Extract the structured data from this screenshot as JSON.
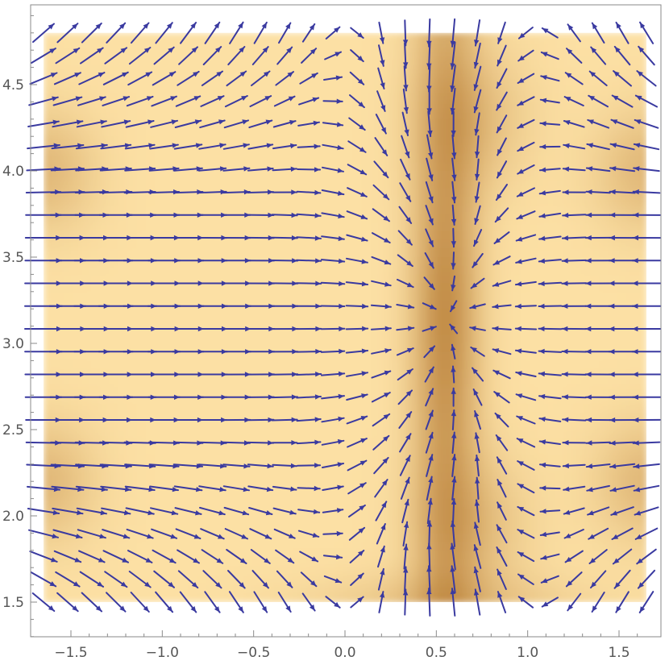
{
  "chart_data": {
    "type": "vector_density",
    "title": "",
    "xlabel": "",
    "ylabel": "",
    "xlim": [
      -1.65,
      1.65
    ],
    "ylim": [
      1.5,
      4.8
    ],
    "x_ticks": [
      -1.5,
      -1.0,
      -0.5,
      0.0,
      0.5,
      1.0,
      1.5
    ],
    "y_ticks": [
      1.5,
      2.0,
      2.5,
      3.0,
      3.5,
      4.0,
      4.5
    ],
    "x_tick_labels": [
      "−1.5",
      "−1.0",
      "−0.5",
      "0.0",
      "0.5",
      "1.0",
      "1.5"
    ],
    "y_tick_labels": [
      "1.5",
      "2.0",
      "2.5",
      "3.0",
      "3.5",
      "4.0",
      "4.5"
    ],
    "grid": false,
    "legend": "none",
    "arrows": {
      "nx": 26,
      "ny": 26
    },
    "vector_field": {
      "center": [
        0.55,
        3.14
      ],
      "vortices": [
        [
          0.65,
          4.3
        ],
        [
          0.65,
          1.95
        ]
      ],
      "description": "Strong horizontal flow toward the line x = 0.55 converging from both sides; arrows along that line point toward y = 3.14; curling vortices near (0.65, 4.3) and (0.65, 1.95); arrows near the corners point outward."
    },
    "density": {
      "light_color": "#fce0a4",
      "dark_color": "#b0722a",
      "dark_regions": [
        "vertical band along x = 0.55",
        "left edge near y = 4.0",
        "left edge near y = 2.2",
        "right edge near y = 4.0",
        "right edge near y = 2.2"
      ]
    },
    "colors": {
      "arrow": "#3a3aa0",
      "axis": "#8a8a8a",
      "tick_text": "#555555"
    }
  }
}
